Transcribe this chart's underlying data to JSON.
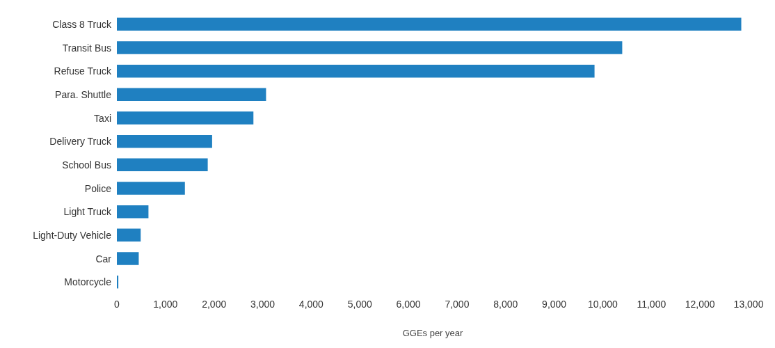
{
  "chart_data": {
    "type": "bar",
    "orientation": "horizontal",
    "xlabel": "GGEs per year",
    "categories": [
      "Class 8 Truck",
      "Transit Bus",
      "Refuse Truck",
      "Para. Shuttle",
      "Taxi",
      "Delivery Truck",
      "School Bus",
      "Police",
      "Light Truck",
      "Light-Duty Vehicle",
      "Car",
      "Motorcycle"
    ],
    "values": [
      12850,
      10400,
      9830,
      3070,
      2810,
      1960,
      1870,
      1400,
      650,
      490,
      450,
      30
    ],
    "color": "#1f80c1",
    "xlim": [
      0,
      13000
    ],
    "xticks": [
      0,
      {
        "value": 1000,
        "label": "1,000"
      },
      {
        "value": 2000,
        "label": "2,000"
      },
      {
        "value": 3000,
        "label": "3,000"
      },
      {
        "value": 4000,
        "label": "4,000"
      },
      {
        "value": 5000,
        "label": "5,000"
      },
      {
        "value": 6000,
        "label": "6,000"
      },
      {
        "value": 7000,
        "label": "7,000"
      },
      {
        "value": 8000,
        "label": "8,000"
      },
      {
        "value": 9000,
        "label": "9,000"
      },
      {
        "value": 10000,
        "label": "10,000"
      },
      {
        "value": 11000,
        "label": "11,000"
      },
      {
        "value": 12000,
        "label": "12,000"
      },
      {
        "value": 13000,
        "label": "13,000"
      }
    ],
    "grid": false
  }
}
